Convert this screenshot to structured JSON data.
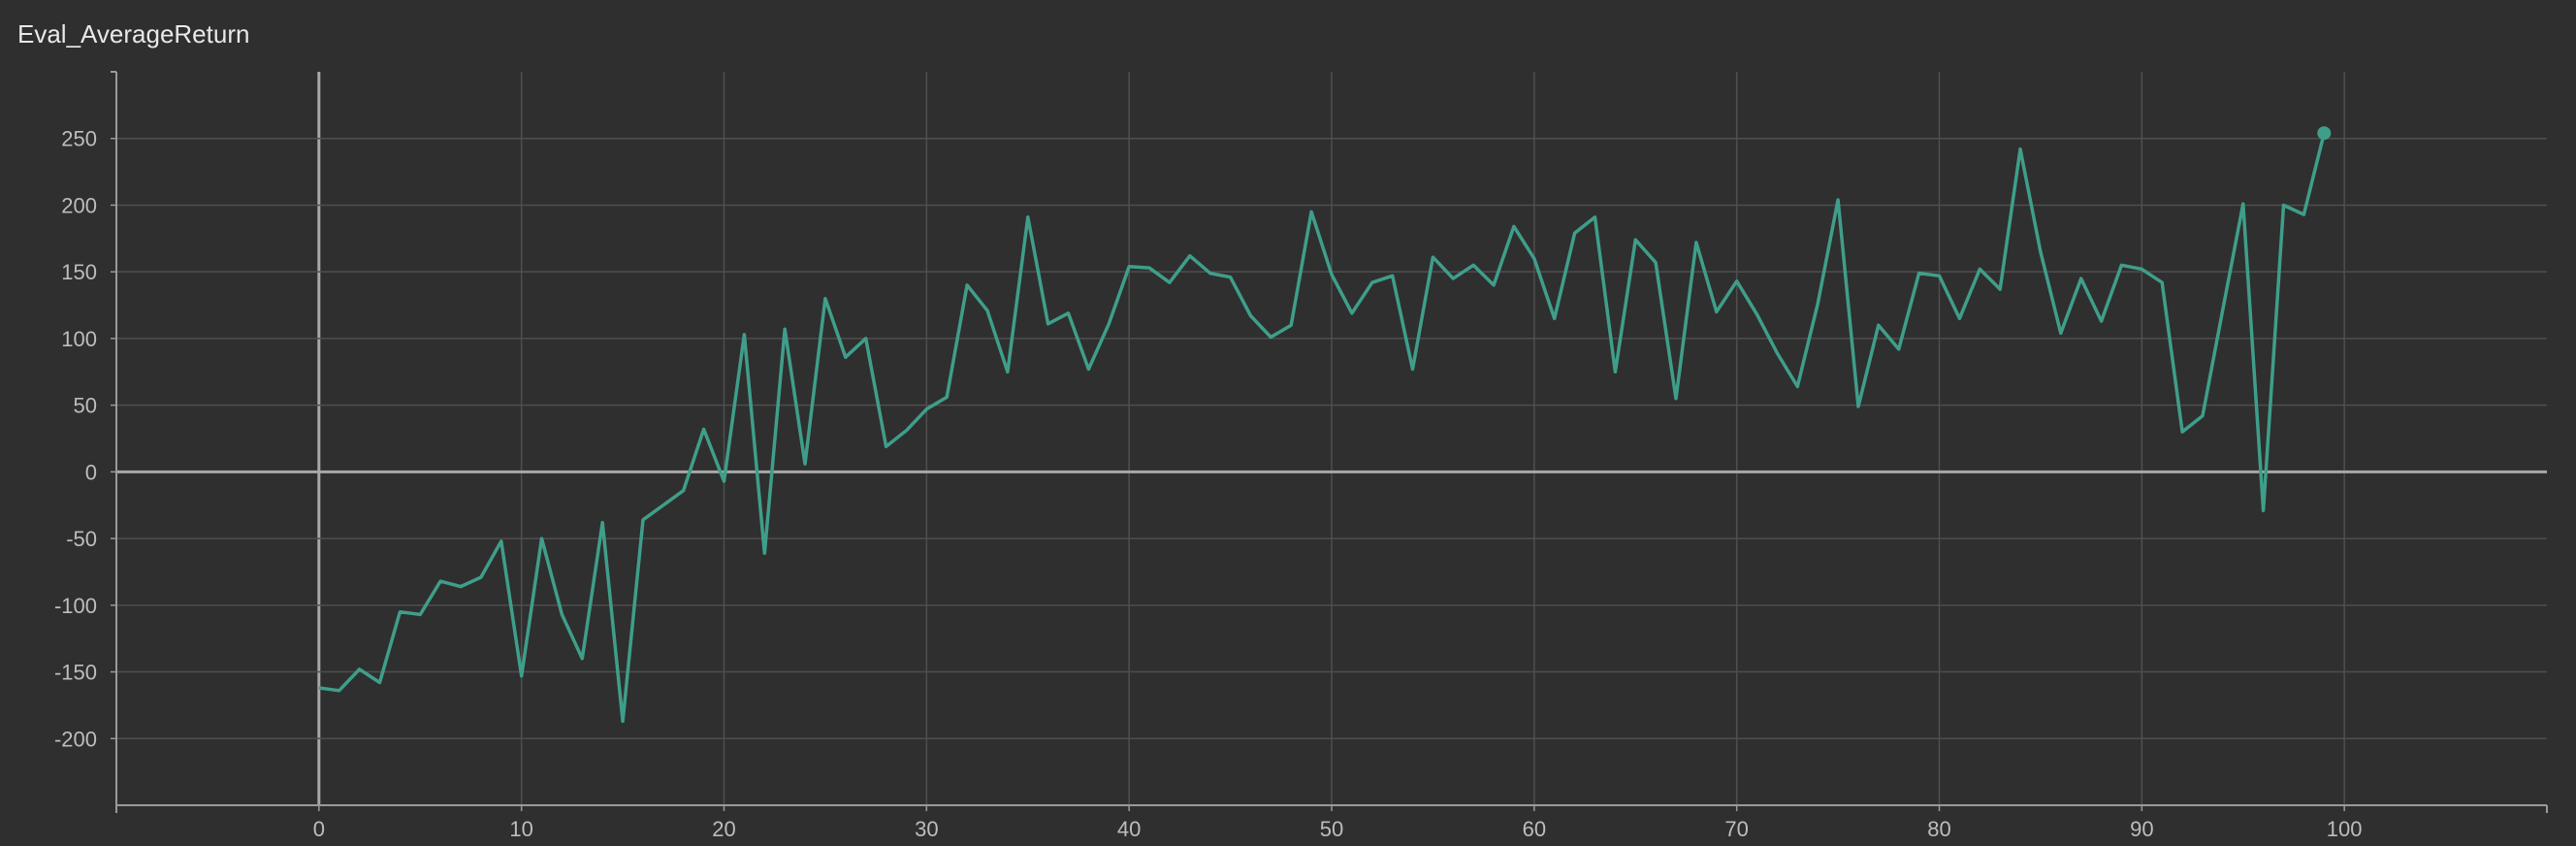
{
  "colors": {
    "background": "#2f2f2f",
    "grid": "#4f4f4f",
    "axis": "#9a9a9a",
    "zero_line": "#a8a8a8",
    "series": "#3f9e8a",
    "text": "#bdbdbd"
  },
  "chart_data": {
    "type": "line",
    "title": "Eval_AverageReturn",
    "xlabel": "",
    "ylabel": "",
    "xlim": [
      -10,
      110
    ],
    "ylim": [
      -250,
      300
    ],
    "xticks": [
      0,
      10,
      20,
      30,
      40,
      50,
      60,
      70,
      80,
      90,
      100
    ],
    "yticks": [
      -200,
      -150,
      -100,
      -50,
      0,
      50,
      100,
      150,
      200,
      250
    ],
    "grid": true,
    "legend": "none",
    "last_point_marker": true,
    "series": [
      {
        "x": [
          0,
          1,
          2,
          3,
          4,
          5,
          6,
          7,
          8,
          9,
          10,
          11,
          12,
          13,
          14,
          15,
          16,
          17,
          18,
          19,
          20,
          21,
          22,
          23,
          24,
          25,
          26,
          27,
          28,
          29,
          30,
          31,
          32,
          33,
          34,
          35,
          36,
          37,
          38,
          39,
          40,
          41,
          42,
          43,
          44,
          45,
          46,
          47,
          48,
          49,
          50,
          51,
          52,
          53,
          54,
          55,
          56,
          57,
          58,
          59,
          60,
          61,
          62,
          63,
          64,
          65,
          66,
          67,
          68,
          69,
          70,
          71,
          72,
          73,
          74,
          75,
          76,
          77,
          78,
          79,
          80,
          81,
          82,
          83,
          84,
          85,
          86,
          87,
          88,
          89,
          90,
          91,
          92,
          93,
          94,
          95,
          96,
          97,
          98,
          99
        ],
        "values": [
          -162,
          -164,
          -148,
          -158,
          -105,
          -107,
          -82,
          -86,
          -79,
          -52,
          -153,
          -50,
          -107,
          -140,
          -38,
          -187,
          -36,
          -25,
          -14,
          32,
          -7,
          103,
          -61,
          107,
          6,
          130,
          86,
          100,
          19,
          31,
          47,
          56,
          140,
          121,
          75,
          191,
          111,
          119,
          77,
          111,
          154,
          153,
          142,
          162,
          149,
          146,
          117,
          101,
          110,
          195,
          148,
          119,
          142,
          147,
          77,
          161,
          145,
          155,
          140,
          184,
          160,
          115,
          179,
          191,
          75,
          174,
          157,
          55,
          172,
          120,
          143,
          118,
          89,
          64,
          126,
          204,
          49,
          110,
          92,
          149,
          147,
          115,
          152,
          137,
          242,
          165,
          104,
          145,
          113,
          155,
          152,
          142,
          30,
          42,
          122,
          201,
          -29,
          200,
          193,
          254
        ]
      }
    ]
  }
}
